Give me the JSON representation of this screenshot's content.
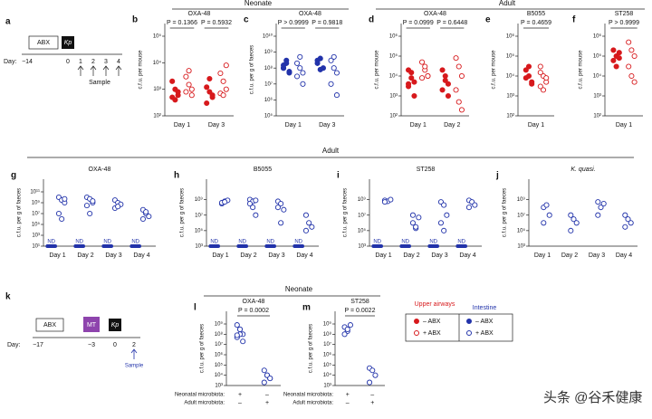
{
  "panel_groups": [
    "Neonate",
    "Adult",
    "Adult",
    "Neonate"
  ],
  "watermark": "头条 @谷禾健康",
  "schematics": [
    {
      "letter": "a",
      "boxes": [
        "ABX",
        "Kp"
      ],
      "day_label": "Day:",
      "days": [
        "−14",
        "0",
        "1",
        "2",
        "3",
        "4"
      ],
      "sample": "Sample"
    },
    {
      "letter": "k",
      "boxes": [
        "ABX",
        "MT",
        "Kp"
      ],
      "day_label": "Day:",
      "days": [
        "−17",
        "−3",
        "0",
        "2"
      ],
      "sample": "Sample"
    }
  ],
  "legend": {
    "groups": [
      {
        "title": "Upper airways",
        "color": "#d7191c",
        "entries": [
          "– ABX",
          "+ ABX"
        ]
      },
      {
        "title": "Intestine",
        "color": "#2233aa",
        "entries": [
          "– ABX",
          "+ ABX"
        ]
      }
    ]
  },
  "chart_data": [
    {
      "type": "dot",
      "letter": "b",
      "title": "OXA-48",
      "ylabel": "c.f.u. per mouse",
      "log": true,
      "ylim": [
        100,
        100000
      ],
      "yticks": [
        {
          "value": 100,
          "label": "10²"
        },
        {
          "value": 1000,
          "label": "10³"
        },
        {
          "value": 10000,
          "label": "10⁴"
        },
        {
          "value": 100000,
          "label": "10⁵"
        }
      ],
      "categories": [
        "Day 1",
        "Day 3"
      ],
      "pvalues": [
        "P = 0.1366",
        "P = 0.5932"
      ],
      "series": [
        {
          "color": "#d7191c",
          "filled": true,
          "values": [
            [
              2000,
              1000,
              600,
              500,
              400,
              800
            ],
            [
              1200,
              800,
              500,
              300,
              2500,
              600
            ]
          ]
        },
        {
          "color": "#d7191c",
          "filled": false,
          "values": [
            [
              3000,
              1500,
              1000,
              800,
              5000,
              600
            ],
            [
              4000,
              2000,
              1000,
              700,
              600,
              8000
            ]
          ]
        }
      ]
    },
    {
      "type": "dot",
      "letter": "c",
      "title": "OXA-48",
      "ylabel": "c.f.u. per g of faeces",
      "log": true,
      "ylim": [
        100000,
        10000000000
      ],
      "yticks": [
        {
          "value": 100000,
          "label": "10⁵"
        },
        {
          "value": 1000000,
          "label": "10⁶"
        },
        {
          "value": 10000000,
          "label": "10⁷"
        },
        {
          "value": 100000000,
          "label": "10⁸"
        },
        {
          "value": 1000000000,
          "label": "10⁹"
        },
        {
          "value": 10000000000,
          "label": "10¹⁰"
        }
      ],
      "categories": [
        "Day 1",
        "Day 3"
      ],
      "pvalues": [
        "P > 0.9999",
        "P = 0.9818"
      ],
      "series": [
        {
          "color": "#2233aa",
          "filled": true,
          "values": [
            [
              100000000,
              300000000,
              50000000,
              100000000,
              200000000,
              60000000,
              150000000
            ],
            [
              200000000,
              400000000,
              100000000,
              300000000,
              80000000
            ]
          ]
        },
        {
          "color": "#2233aa",
          "filled": false,
          "values": [
            [
              200000000,
              100000000,
              50000000,
              30000000,
              500000000,
              10000000
            ],
            [
              300000000,
              100000000,
              50000000,
              10000000,
              500000000,
              2000000
            ]
          ]
        }
      ]
    },
    {
      "type": "dot",
      "letter": "d",
      "title": "OXA-48",
      "ylabel": "c.f.u. per mouse",
      "log": true,
      "ylim": [
        100,
        1000000
      ],
      "yticks": [
        {
          "value": 100,
          "label": "10²"
        },
        {
          "value": 1000,
          "label": "10³"
        },
        {
          "value": 10000,
          "label": "10⁴"
        },
        {
          "value": 100000,
          "label": "10⁵"
        },
        {
          "value": 1000000,
          "label": "10⁶"
        }
      ],
      "categories": [
        "Day 1",
        "Day 2"
      ],
      "pvalues": [
        "P = 0.0999",
        "P = 0.6448"
      ],
      "series": [
        {
          "color": "#d7191c",
          "filled": true,
          "values": [
            [
              20000,
              8000,
              5000,
              3000,
              15000,
              1000,
              4000
            ],
            [
              20000,
              10000,
              4000,
              2000,
              6000,
              1000
            ]
          ]
        },
        {
          "color": "#d7191c",
          "filled": false,
          "values": [
            [
              50000,
              20000,
              10000,
              8000,
              30000,
              10000
            ],
            [
              80000,
              30000,
              10000,
              2000,
              500,
              200
            ]
          ]
        }
      ]
    },
    {
      "type": "dot",
      "letter": "e",
      "title": "B5055",
      "ylabel": "c.f.u. per mouse",
      "log": true,
      "ylim": [
        100,
        1000000
      ],
      "yticks": [
        {
          "value": 100,
          "label": "10²"
        },
        {
          "value": 1000,
          "label": "10³"
        },
        {
          "value": 10000,
          "label": "10⁴"
        },
        {
          "value": 100000,
          "label": "10⁵"
        },
        {
          "value": 1000000,
          "label": "10⁶"
        }
      ],
      "categories": [
        "Day 1"
      ],
      "pvalues": [
        "P = 0.4659"
      ],
      "series": [
        {
          "color": "#d7191c",
          "filled": true,
          "values": [
            [
              20000,
              10000,
              5000,
              8000,
              30000,
              4000
            ]
          ]
        },
        {
          "color": "#d7191c",
          "filled": false,
          "values": [
            [
              30000,
              10000,
              5000,
              3000,
              2000,
              8000,
              15000
            ]
          ]
        }
      ]
    },
    {
      "type": "dot",
      "letter": "f",
      "title": "ST258",
      "ylabel": "c.f.u. per mouse",
      "log": true,
      "ylim": [
        100,
        1000000
      ],
      "yticks": [
        {
          "value": 100,
          "label": "10²"
        },
        {
          "value": 1000,
          "label": "10³"
        },
        {
          "value": 10000,
          "label": "10⁴"
        },
        {
          "value": 100000,
          "label": "10⁵"
        },
        {
          "value": 1000000,
          "label": "10⁶"
        }
      ],
      "categories": [
        "Day 1"
      ],
      "pvalues": [
        "P > 0.9999"
      ],
      "series": [
        {
          "color": "#d7191c",
          "filled": true,
          "values": [
            [
              200000,
              100000,
              80000,
              60000,
              30000,
              150000
            ]
          ]
        },
        {
          "color": "#d7191c",
          "filled": false,
          "values": [
            [
              500000,
              200000,
              100000,
              30000,
              10000,
              5000
            ]
          ]
        }
      ]
    },
    {
      "type": "dot",
      "letter": "g",
      "title": "OXA-48",
      "ylabel": "c.f.u. per g of faeces",
      "log": true,
      "ylim": [
        10,
        100000000000
      ],
      "yticks": [
        {
          "value": 10,
          "label": "10¹"
        },
        {
          "value": 1000,
          "label": "10³"
        },
        {
          "value": 100000,
          "label": "10⁵"
        },
        {
          "value": 10000000,
          "label": "10⁷"
        },
        {
          "value": 1000000000,
          "label": "10⁹"
        },
        {
          "value": 100000000000,
          "label": "10¹¹"
        }
      ],
      "categories": [
        "Day 1",
        "Day 2",
        "Day 3",
        "Day 4"
      ],
      "nd_labels": [
        "ND",
        "ND",
        "ND",
        "ND"
      ],
      "series": [
        {
          "color": "#2233aa",
          "filled": false,
          "values": [
            [
              10000000000,
              3000000000,
              1000000000,
              10000000,
              1000000,
              5000000000
            ],
            [
              10000000000,
              5000000000,
              1000000000,
              300000000,
              10000000,
              2000000000
            ],
            [
              3000000000,
              1000000000,
              500000000,
              100000000,
              200000000
            ],
            [
              50000000,
              10000000,
              3000000,
              1000000,
              20000000
            ]
          ]
        }
      ]
    },
    {
      "type": "dot",
      "letter": "h",
      "title": "B5055",
      "ylabel": "c.f.u. per g of faeces",
      "log": true,
      "ylim": [
        1000,
        10000000000
      ],
      "yticks": [
        {
          "value": 1000,
          "label": "10³"
        },
        {
          "value": 100000,
          "label": "10⁵"
        },
        {
          "value": 10000000,
          "label": "10⁷"
        },
        {
          "value": 1000000000,
          "label": "10⁹"
        }
      ],
      "categories": [
        "Day 1",
        "Day 2",
        "Day 3",
        "Day 4"
      ],
      "nd_labels": [
        "ND",
        "ND",
        "ND",
        "ND"
      ],
      "series": [
        {
          "color": "#2233aa",
          "filled": false,
          "values": [
            [
              300000000,
              600000000,
              800000000,
              400000000,
              500000000
            ],
            [
              1000000000,
              600000000,
              800000000,
              300000000,
              100000000,
              10000000
            ],
            [
              600000000,
              300000000,
              50000000,
              100000000,
              1000000
            ],
            [
              10000000,
              1000000,
              300000,
              100000
            ]
          ]
        }
      ]
    },
    {
      "type": "dot",
      "letter": "i",
      "title": "ST258",
      "ylabel": "c.f.u. per g of faeces",
      "log": true,
      "ylim": [
        1000,
        10000000000
      ],
      "yticks": [
        {
          "value": 1000,
          "label": "10³"
        },
        {
          "value": 100000,
          "label": "10⁵"
        },
        {
          "value": 10000000,
          "label": "10⁷"
        },
        {
          "value": 1000000000,
          "label": "10⁹"
        }
      ],
      "categories": [
        "Day 1",
        "Day 2",
        "Day 3",
        "Day 4"
      ],
      "nd_labels": [
        "ND",
        "ND",
        "ND",
        "ND"
      ],
      "series": [
        {
          "color": "#2233aa",
          "filled": false,
          "values": [
            [
              800000000,
              600000000,
              1000000000,
              500000000
            ],
            [
              10000000,
              200000,
              5000000,
              1000000,
              300000
            ],
            [
              500000000,
              200000000,
              10000000,
              1000000,
              100000
            ],
            [
              800000000,
              500000000,
              200000000,
              100000000
            ]
          ]
        }
      ]
    },
    {
      "type": "dot",
      "letter": "j",
      "title": "K. quasi.",
      "title_style": "italic",
      "ylabel": "c.f.u. per g of faeces",
      "log": true,
      "ylim": [
        1000,
        10000000000
      ],
      "yticks": [
        {
          "value": 1000,
          "label": "10³"
        },
        {
          "value": 100000,
          "label": "10⁵"
        },
        {
          "value": 10000000,
          "label": "10⁷"
        },
        {
          "value": 1000000000,
          "label": "10⁹"
        }
      ],
      "categories": [
        "Day 1",
        "Day 2",
        "Day 3",
        "Day 4"
      ],
      "series": [
        {
          "color": "#2233aa",
          "filled": false,
          "values": [
            [
              100000000,
              200000000,
              10000000,
              1000000
            ],
            [
              10000000,
              3000000,
              1000000,
              100000
            ],
            [
              500000000,
              100000000,
              300000000,
              10000000
            ],
            [
              10000000,
              3000000,
              1000000,
              300000
            ]
          ]
        }
      ]
    },
    {
      "type": "dot",
      "letter": "l",
      "title": "OXA-48",
      "ylabel": "c.f.u. per g of faeces",
      "log": true,
      "ylim": [
        1000,
        1000000000
      ],
      "yticks": [
        {
          "value": 1000,
          "label": "10³"
        },
        {
          "value": 10000,
          "label": "10⁴"
        },
        {
          "value": 100000,
          "label": "10⁵"
        },
        {
          "value": 1000000,
          "label": "10⁶"
        },
        {
          "value": 10000000,
          "label": "10⁷"
        },
        {
          "value": 100000000,
          "label": "10⁸"
        },
        {
          "value": 1000000000,
          "label": "10⁹"
        }
      ],
      "pvalue": "P = 0.0002",
      "rows": [
        {
          "label": "Neonatal microbiota:",
          "signs": [
            "+",
            "–"
          ]
        },
        {
          "label": "Adult microbiota:",
          "signs": [
            "–",
            "+"
          ]
        }
      ],
      "series": [
        {
          "color": "#2233aa",
          "filled": false,
          "values": [
            800000000,
            300000000,
            100000000,
            50000000,
            100000000,
            20000000,
            80000000,
            300000000
          ]
        },
        {
          "color": "#2233aa",
          "filled": false,
          "values": [
            30000,
            10000,
            5000,
            2000,
            10000,
            5000
          ]
        }
      ]
    },
    {
      "type": "dot",
      "letter": "m",
      "title": "ST258",
      "ylabel": "c.f.u. per g of faeces",
      "log": true,
      "ylim": [
        1000,
        1000000000
      ],
      "yticks": [
        {
          "value": 1000,
          "label": "10³"
        },
        {
          "value": 10000,
          "label": "10⁴"
        },
        {
          "value": 100000,
          "label": "10⁵"
        },
        {
          "value": 1000000,
          "label": "10⁶"
        },
        {
          "value": 10000000,
          "label": "10⁷"
        },
        {
          "value": 100000000,
          "label": "10⁸"
        },
        {
          "value": 1000000000,
          "label": "10⁹"
        }
      ],
      "pvalue": "P = 0.0022",
      "rows": [
        {
          "label": "Neonatal microbiota:",
          "signs": [
            "+",
            "–"
          ]
        },
        {
          "label": "Adult microbiota:",
          "signs": [
            "–",
            "+"
          ]
        }
      ],
      "series": [
        {
          "color": "#2233aa",
          "filled": false,
          "values": [
            500000000,
            200000000,
            800000000,
            100000000,
            300000000
          ]
        },
        {
          "color": "#2233aa",
          "filled": false,
          "values": [
            50000,
            30000,
            10000,
            2000
          ]
        }
      ]
    }
  ]
}
